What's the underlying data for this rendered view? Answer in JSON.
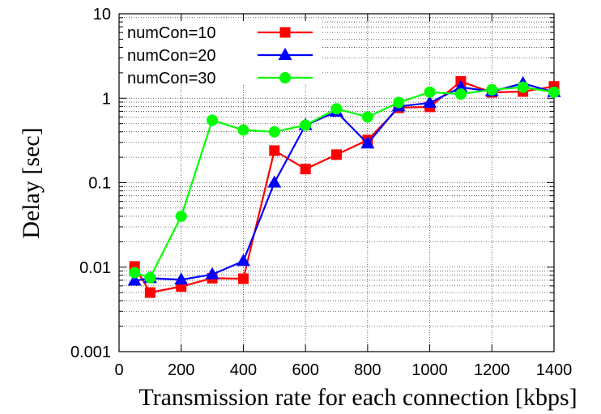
{
  "chart_data": {
    "type": "line",
    "title": "",
    "xlabel": "Transmission rate for each connection [kbps]",
    "ylabel": "Delay [sec]",
    "x": [
      50,
      100,
      200,
      300,
      400,
      500,
      600,
      700,
      800,
      900,
      1000,
      1100,
      1200,
      1300,
      1400
    ],
    "xlim": [
      0,
      1400
    ],
    "xticks": [
      0,
      200,
      400,
      600,
      800,
      1000,
      1200,
      1400
    ],
    "xtick_labels": [
      "0",
      "200",
      "400",
      "600",
      "800",
      "1000",
      "1200",
      "1400"
    ],
    "ylim": [
      0.001,
      10
    ],
    "yscale": "log",
    "yticks": [
      0.001,
      0.01,
      0.1,
      1,
      10
    ],
    "ytick_labels": [
      "0.001",
      "0.01",
      "0.1",
      "1",
      "10"
    ],
    "grid": true,
    "legend_position": "top-left",
    "series": [
      {
        "name": "numCon=10",
        "color": "#ff0000",
        "marker": "square",
        "values": [
          0.0102,
          0.005,
          0.0059,
          0.0074,
          0.0073,
          0.24,
          0.145,
          0.215,
          0.32,
          0.77,
          0.79,
          1.58,
          1.17,
          1.2,
          1.38
        ]
      },
      {
        "name": "numCon=20",
        "color": "#0000ff",
        "marker": "triangle",
        "values": [
          0.0069,
          0.0074,
          0.0071,
          0.0082,
          0.0118,
          0.1,
          0.48,
          0.69,
          0.29,
          0.8,
          0.88,
          1.35,
          1.2,
          1.5,
          1.18
        ]
      },
      {
        "name": "numCon=30",
        "color": "#00ff00",
        "marker": "circle",
        "values": [
          0.0086,
          0.0075,
          0.04,
          0.55,
          0.42,
          0.4,
          0.48,
          0.75,
          0.6,
          0.89,
          1.18,
          1.12,
          1.26,
          1.35,
          1.18
        ]
      }
    ]
  }
}
